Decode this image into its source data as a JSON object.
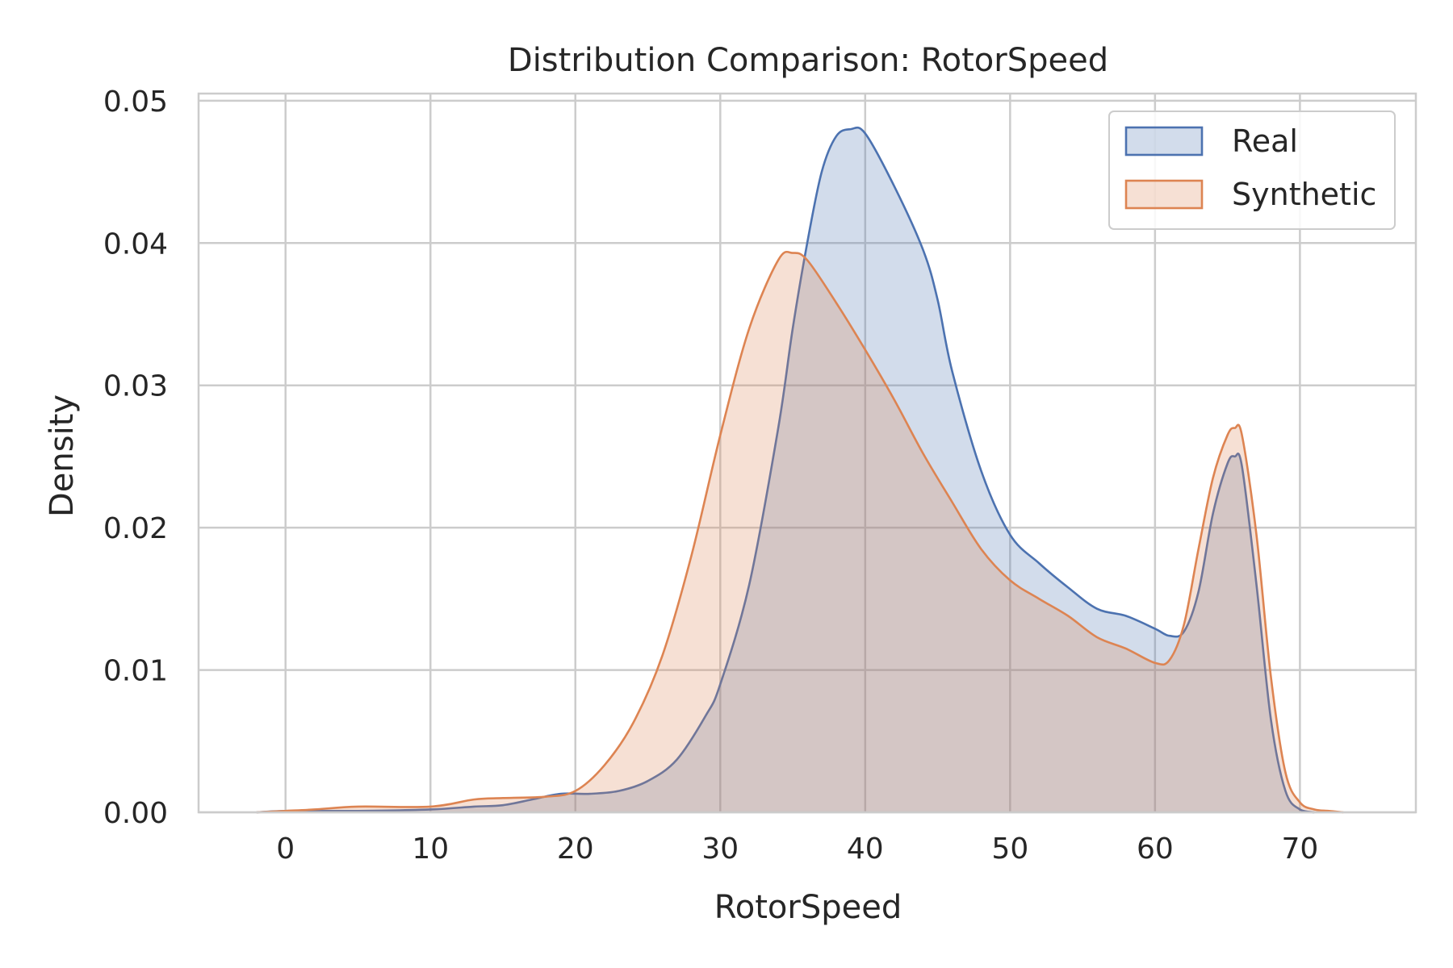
{
  "chart_data": {
    "type": "area",
    "title": "Distribution Comparison: RotorSpeed",
    "xlabel": "RotorSpeed",
    "ylabel": "Density",
    "xlim": [
      -6,
      78
    ],
    "ylim": [
      0,
      0.0505
    ],
    "xticks": [
      0,
      10,
      20,
      30,
      40,
      50,
      60,
      70
    ],
    "xtick_labels": [
      "0",
      "10",
      "20",
      "30",
      "40",
      "50",
      "60",
      "70"
    ],
    "yticks": [
      0,
      0.01,
      0.02,
      0.03,
      0.04,
      0.05
    ],
    "ytick_labels": [
      "0.00",
      "0.01",
      "0.02",
      "0.03",
      "0.04",
      "0.05"
    ],
    "grid": true,
    "legend_position": "top-right",
    "series": [
      {
        "name": "Real",
        "color": "#4c72b0",
        "x": [
          -2,
          0,
          5,
          10,
          13,
          15,
          17,
          19,
          21,
          23,
          25,
          27,
          29,
          30,
          32,
          34,
          35,
          36,
          37,
          38,
          39,
          40,
          42,
          44,
          45,
          46,
          48,
          50,
          52,
          54,
          56,
          58,
          60,
          61,
          62,
          63,
          64,
          65,
          65.5,
          66,
          67,
          68,
          69,
          70,
          71
        ],
        "y": [
          0,
          0.0001,
          0.0001,
          0.0002,
          0.0004,
          0.0005,
          0.0009,
          0.0013,
          0.0013,
          0.0015,
          0.0022,
          0.0037,
          0.0068,
          0.009,
          0.016,
          0.027,
          0.034,
          0.04,
          0.045,
          0.0475,
          0.048,
          0.0477,
          0.044,
          0.0395,
          0.036,
          0.031,
          0.024,
          0.0195,
          0.0175,
          0.0158,
          0.0143,
          0.0138,
          0.0129,
          0.0124,
          0.0127,
          0.0155,
          0.021,
          0.0245,
          0.025,
          0.0243,
          0.016,
          0.0065,
          0.0015,
          0.0002,
          0
        ]
      },
      {
        "name": "Synthetic",
        "color": "#dd8452",
        "x": [
          -2,
          0,
          2,
          5,
          10,
          13,
          15,
          18,
          20,
          22,
          24,
          26,
          28,
          30,
          32,
          34,
          35,
          36,
          38,
          40,
          42,
          44,
          46,
          48,
          50,
          52,
          54,
          56,
          58,
          60,
          61,
          62,
          63,
          64,
          65,
          65.5,
          66,
          67,
          68,
          69,
          70,
          71,
          72,
          73
        ],
        "y": [
          0,
          0.0001,
          0.0002,
          0.0004,
          0.0004,
          0.0009,
          0.001,
          0.0011,
          0.0015,
          0.0033,
          0.0063,
          0.011,
          0.018,
          0.0265,
          0.034,
          0.0388,
          0.0393,
          0.0388,
          0.0358,
          0.0325,
          0.029,
          0.0252,
          0.0218,
          0.0185,
          0.0163,
          0.015,
          0.0138,
          0.0123,
          0.0115,
          0.0105,
          0.0107,
          0.0132,
          0.0185,
          0.0235,
          0.0265,
          0.027,
          0.0265,
          0.0195,
          0.0095,
          0.0028,
          0.0007,
          0.0002,
          0.0001,
          0
        ]
      }
    ]
  }
}
